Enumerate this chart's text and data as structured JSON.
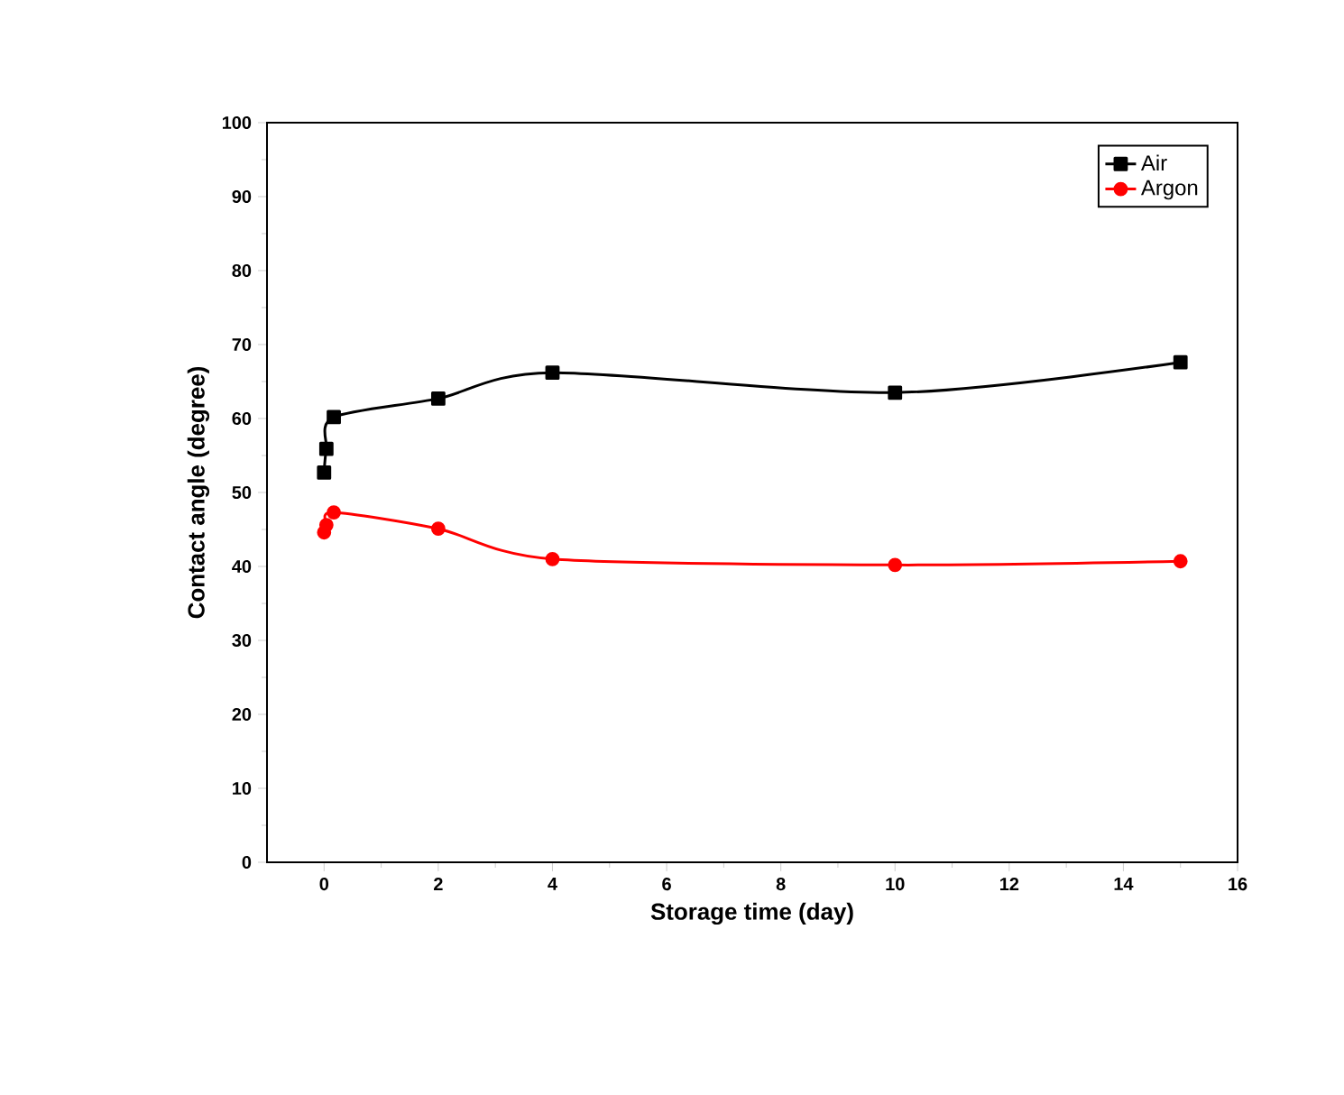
{
  "chart_data": {
    "type": "line",
    "xlabel": "Storage time (day)",
    "ylabel": "Contact angle (degree)",
    "xlim": [
      -1,
      16
    ],
    "xticks": [
      0,
      2,
      4,
      6,
      8,
      10,
      12,
      14,
      16
    ],
    "ylim": [
      0,
      100
    ],
    "yticks": [
      0,
      10,
      20,
      30,
      40,
      50,
      60,
      70,
      80,
      90,
      100
    ],
    "legend": "top right",
    "line_style": "solid",
    "series": [
      {
        "name": "Air",
        "color": "#000000",
        "marker": "square",
        "x": [
          0,
          0.04,
          0.17,
          2,
          4,
          10,
          15
        ],
        "values": [
          52.7,
          55.9,
          60.2,
          62.7,
          66.2,
          63.5,
          67.6
        ]
      },
      {
        "name": "Argon",
        "color": "#ff0000",
        "marker": "circle",
        "x": [
          0,
          0.04,
          0.17,
          2,
          4,
          10,
          15
        ],
        "values": [
          44.6,
          45.6,
          47.3,
          45.1,
          41.0,
          40.2,
          40.7
        ]
      }
    ]
  }
}
